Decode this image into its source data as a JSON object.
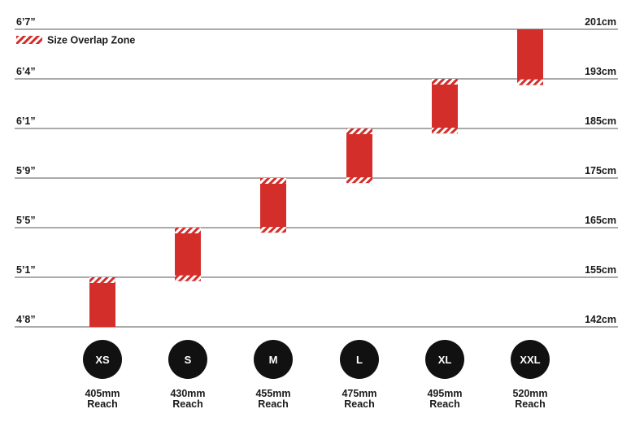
{
  "legend": {
    "label": "Size Overlap Zone"
  },
  "colors": {
    "bar": "#d42e2b",
    "stripe": "#ffffff",
    "circle": "#111111",
    "grid": "#555555"
  },
  "chart_data": {
    "type": "range-bar",
    "y_ticks_left": [
      "6’7”",
      "6’4”",
      "6’1”",
      "5’9”",
      "5’5”",
      "5’1”",
      "4’8”"
    ],
    "y_ticks_right": [
      "201cm",
      "193cm",
      "185cm",
      "175cm",
      "165cm",
      "155cm",
      "142cm"
    ],
    "grid": true,
    "legend_position": "top-left",
    "categories": [
      "XS",
      "S",
      "M",
      "L",
      "XL",
      "XXL"
    ],
    "reach": [
      {
        "value": "405mm",
        "unit": "Reach"
      },
      {
        "value": "430mm",
        "unit": "Reach"
      },
      {
        "value": "455mm",
        "unit": "Reach"
      },
      {
        "value": "475mm",
        "unit": "Reach"
      },
      {
        "value": "495mm",
        "unit": "Reach"
      },
      {
        "value": "520mm",
        "unit": "Reach"
      }
    ],
    "ranges_cm": [
      {
        "size": "XS",
        "min": 142,
        "max": 155,
        "overlap_top": true,
        "overlap_bottom": false
      },
      {
        "size": "S",
        "min": 154,
        "max": 165,
        "overlap_top": true,
        "overlap_bottom": true
      },
      {
        "size": "M",
        "min": 164,
        "max": 175,
        "overlap_top": true,
        "overlap_bottom": true
      },
      {
        "size": "L",
        "min": 174,
        "max": 185,
        "overlap_top": true,
        "overlap_bottom": true
      },
      {
        "size": "XL",
        "min": 184,
        "max": 193,
        "overlap_top": true,
        "overlap_bottom": true
      },
      {
        "size": "XXL",
        "min": 192,
        "max": 201,
        "overlap_top": false,
        "overlap_bottom": true
      }
    ]
  }
}
